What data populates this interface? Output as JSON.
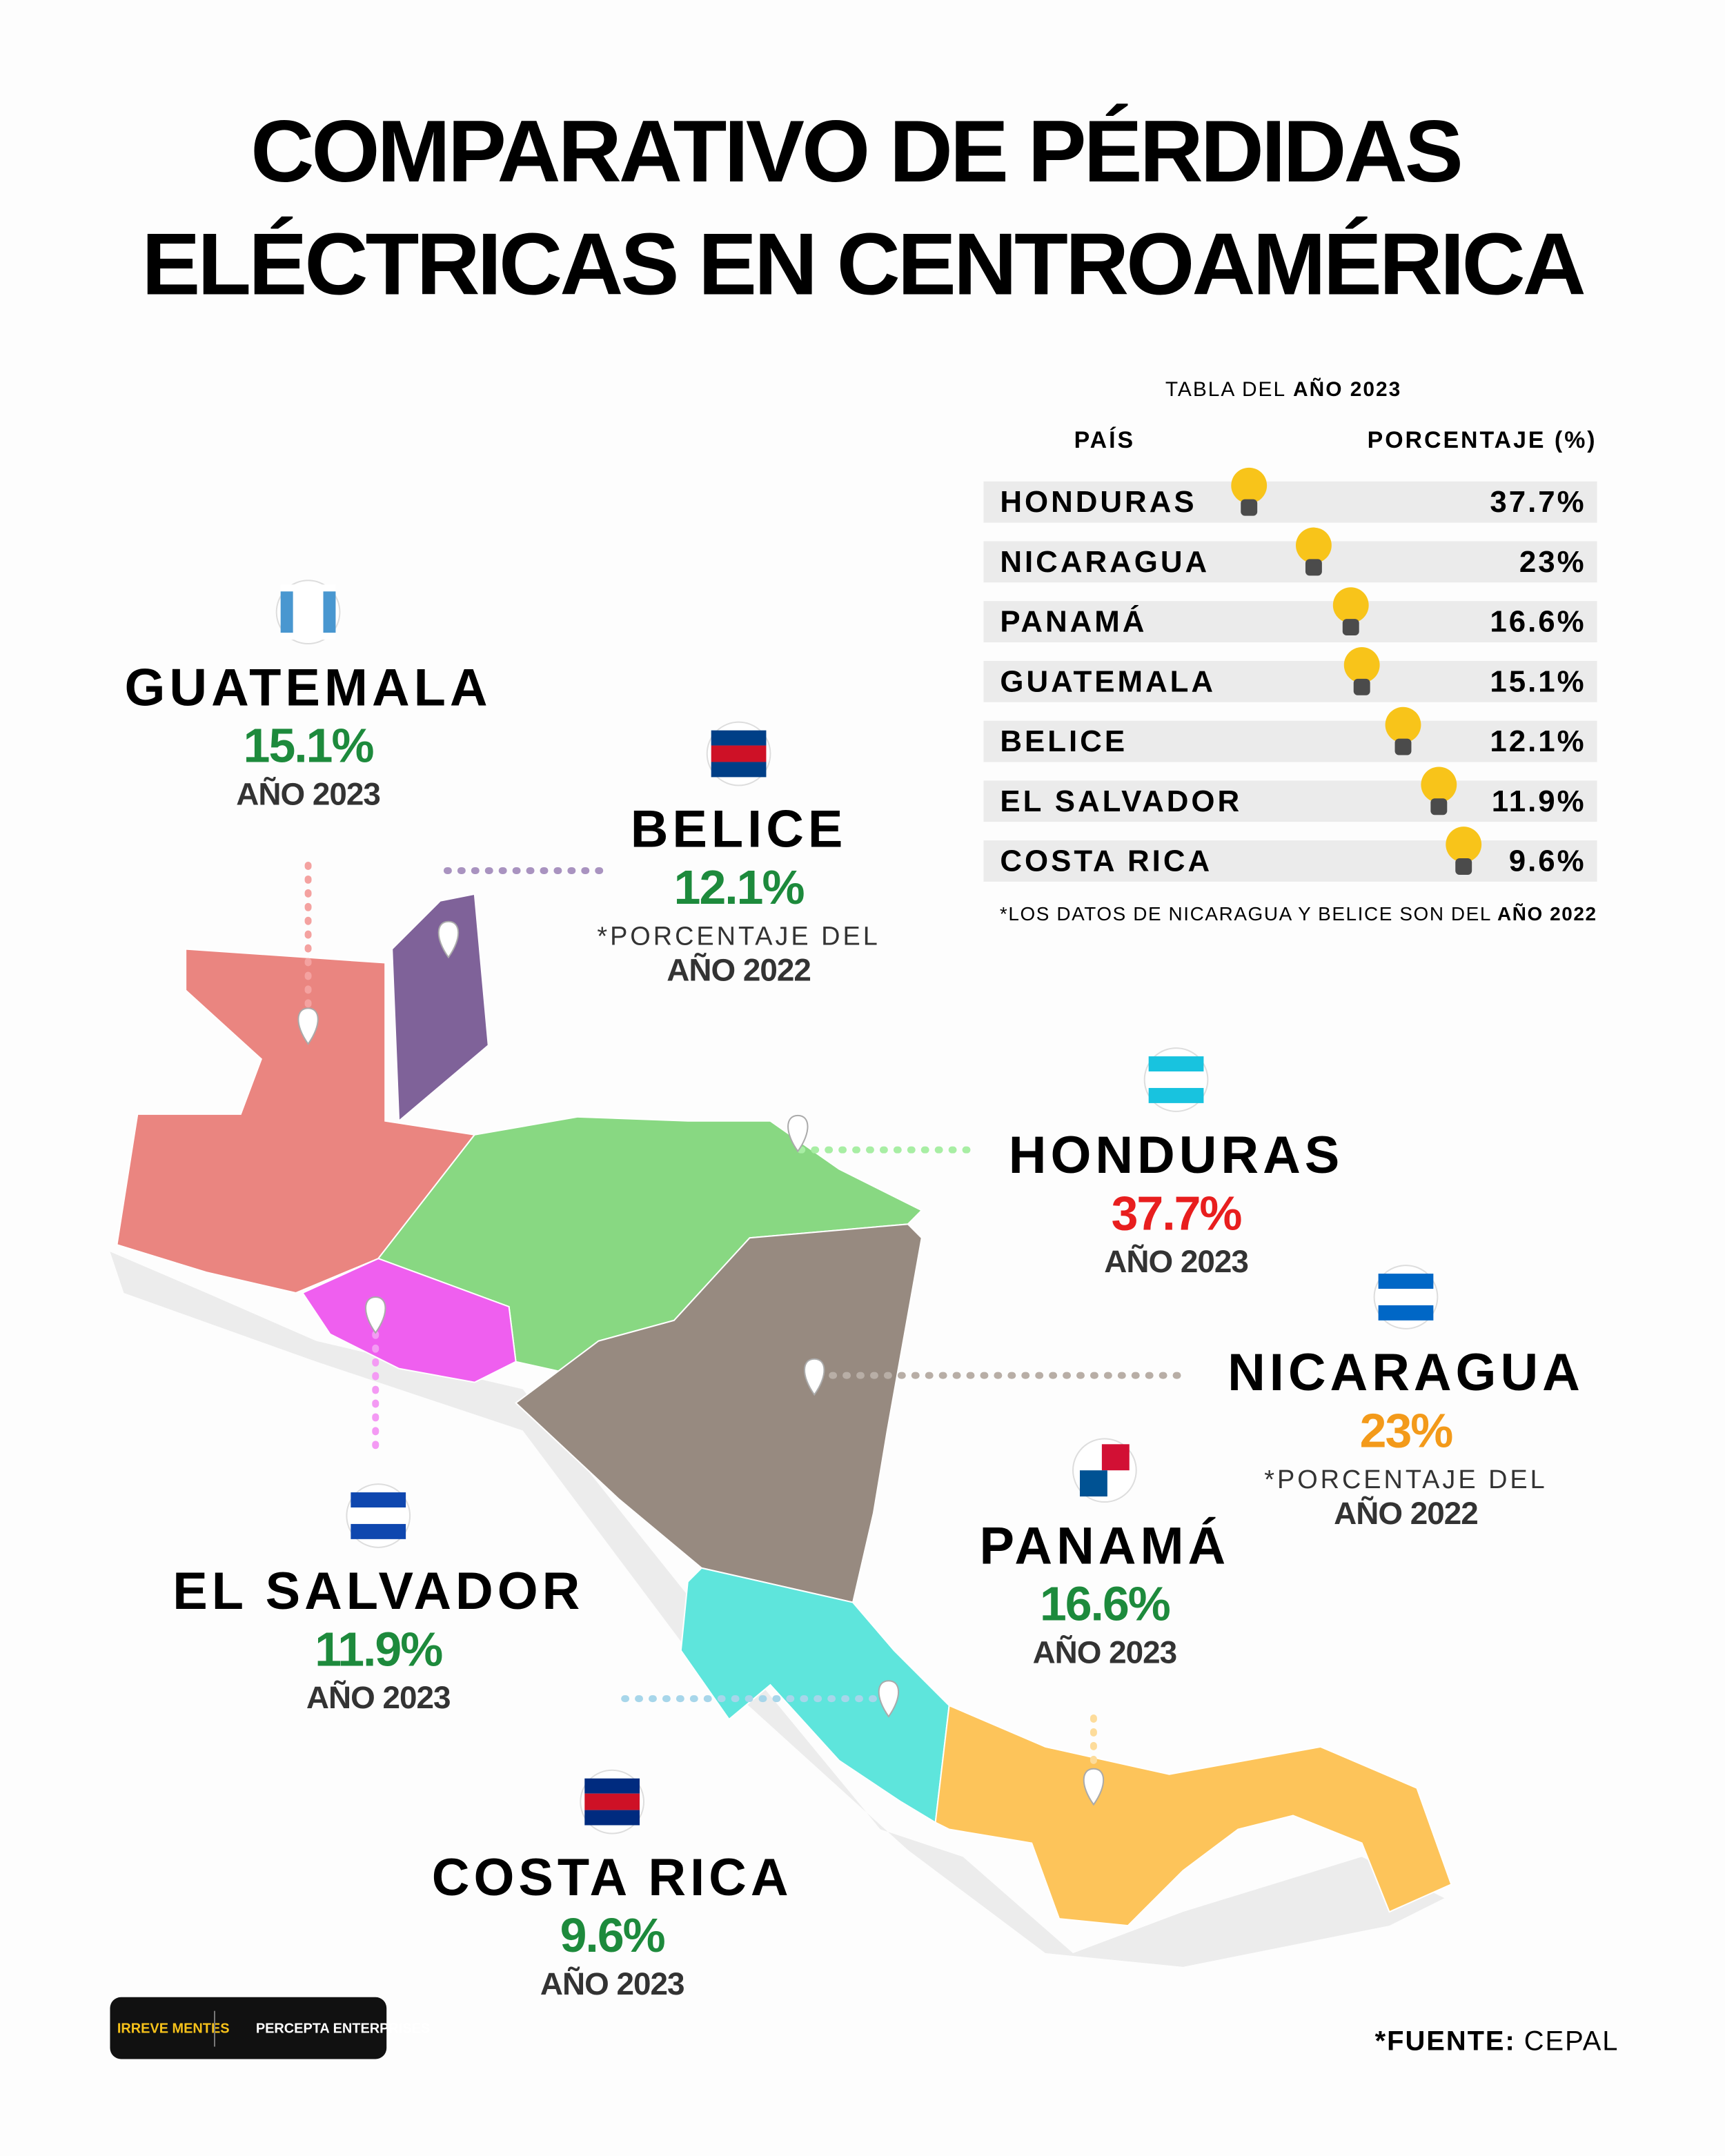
{
  "header": {
    "title": [
      "COMPARATIVO DE PÉRDIDAS",
      "ELÉCTRICAS EN CENTROAMÉRICA"
    ]
  },
  "table": {
    "caption": [
      "TABLA DEL",
      "AÑO 2023"
    ],
    "columns": [
      "PAÍS",
      "PORCENTAJE (%)"
    ],
    "rows": [
      [
        "HONDURAS",
        "37.7%"
      ],
      [
        "NICARAGUA",
        "23%"
      ],
      [
        "PANAMÁ",
        "16.6%"
      ],
      [
        "GUATEMALA",
        "15.1%"
      ],
      [
        "BELICE",
        "12.1%"
      ],
      [
        "EL SALVADOR",
        "11.9%"
      ],
      [
        "COSTA RICA",
        "9.6%"
      ]
    ],
    "note": [
      "*LOS DATOS DE NICARAGUA Y BELICE SON DEL",
      "AÑO 2022"
    ]
  },
  "map": {
    "labels": [
      {
        "name": "GUATEMALA",
        "value": "15.1%",
        "color": "#1d8a3c",
        "note": [
          "AÑO 2023"
        ]
      },
      {
        "name": "BELICE",
        "value": "12.1%",
        "color": "#1d8a3c",
        "note": [
          "*PORCENTAJE DEL",
          "AÑO 2022"
        ]
      },
      {
        "name": "HONDURAS",
        "value": "37.7%",
        "color": "#e81e1e",
        "note": [
          "AÑO 2023"
        ]
      },
      {
        "name": "NICARAGUA",
        "value": "23%",
        "color": "#f39a1a",
        "note": [
          "*PORCENTAJE DEL",
          "AÑO 2022"
        ]
      },
      {
        "name": "PANAMÁ",
        "value": "16.6%",
        "color": "#1d8a3c",
        "note": [
          "AÑO 2023"
        ]
      },
      {
        "name": "EL SALVADOR",
        "value": "11.9%",
        "color": "#1d8a3c",
        "note": [
          "AÑO 2023"
        ]
      },
      {
        "name": "COSTA RICA",
        "value": "9.6%",
        "color": "#1d8a3c",
        "note": [
          "AÑO 2023"
        ]
      }
    ]
  },
  "footer": {
    "logos": [
      "IRREVE MENTES",
      "PERCEPTA ENTERPRISES"
    ],
    "source": [
      "*FUENTE:",
      "CEPAL"
    ]
  }
}
